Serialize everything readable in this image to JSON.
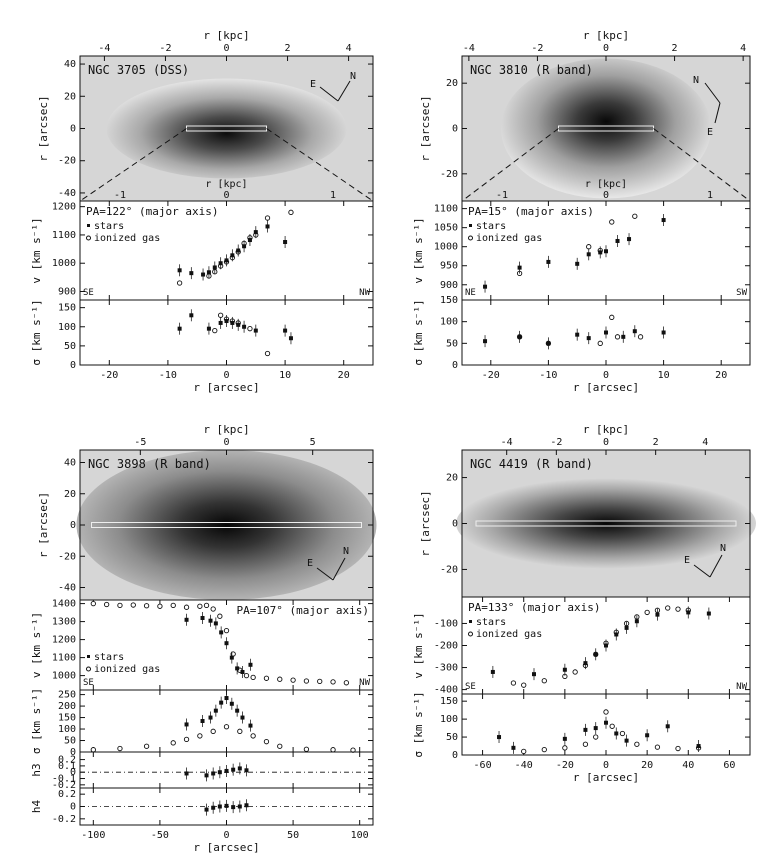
{
  "chart_data": [
    {
      "type": "scatter",
      "galaxy": "NGC 3705 (DSS)",
      "image": {
        "label": "NGC 3705 (DSS)",
        "top_axis_label": "r [kpc]",
        "top_ticks": [
          "-4",
          "-2",
          "0",
          "2",
          "4"
        ],
        "top_range": [
          -4.8,
          4.8
        ],
        "y_axis_label": "r [arcsec]",
        "y_ticks": [
          "40",
          "20",
          "0",
          "-20",
          "-40"
        ],
        "y_range": [
          -45,
          45
        ],
        "compass": [
          "N",
          "E"
        ],
        "bottom_axis_label": "r [kpc]",
        "bottom_ticks": [
          "-1",
          "0",
          "1"
        ]
      },
      "pa_label": "PA=122° (major axis)",
      "legend": [
        "stars",
        "ionized gas"
      ],
      "side_labels": [
        "SE",
        "NW"
      ],
      "x_axis_label": "r [arcsec]",
      "x_ticks": [
        "-20",
        "-10",
        "0",
        "10",
        "20"
      ],
      "xlim": [
        -25,
        25
      ],
      "velocity": {
        "ylabel": "v [km s⁻¹]",
        "ylim": [
          870,
          1220
        ],
        "y_ticks": [
          "900",
          "1000",
          "1100",
          "1200"
        ],
        "stars": [
          [
            -8,
            975
          ],
          [
            -6,
            965
          ],
          [
            -4,
            960
          ],
          [
            -3,
            968
          ],
          [
            -2,
            985
          ],
          [
            -1,
            1000
          ],
          [
            0,
            1010
          ],
          [
            1,
            1028
          ],
          [
            2,
            1045
          ],
          [
            3,
            1060
          ],
          [
            4,
            1082
          ],
          [
            5,
            1110
          ],
          [
            7,
            1130
          ],
          [
            10,
            1075
          ]
        ],
        "gas": [
          [
            -8,
            930
          ],
          [
            -3,
            955
          ],
          [
            -2,
            970
          ],
          [
            -1,
            990
          ],
          [
            0,
            1005
          ],
          [
            1,
            1020
          ],
          [
            2,
            1040
          ],
          [
            3,
            1070
          ],
          [
            4,
            1090
          ],
          [
            5,
            1100
          ],
          [
            7,
            1160
          ],
          [
            11,
            1180
          ]
        ]
      },
      "sigma": {
        "ylabel": "σ [km s⁻¹]",
        "ylim": [
          0,
          170
        ],
        "y_ticks": [
          "0",
          "50",
          "100",
          "150"
        ],
        "stars": [
          [
            -8,
            95
          ],
          [
            -6,
            130
          ],
          [
            -3,
            95
          ],
          [
            -1,
            110
          ],
          [
            0,
            115
          ],
          [
            1,
            110
          ],
          [
            2,
            105
          ],
          [
            3,
            100
          ],
          [
            5,
            90
          ],
          [
            10,
            90
          ],
          [
            11,
            70
          ]
        ],
        "gas": [
          [
            -2,
            90
          ],
          [
            -1,
            130
          ],
          [
            0,
            120
          ],
          [
            1,
            115
          ],
          [
            2,
            110
          ],
          [
            4,
            95
          ],
          [
            7,
            30
          ]
        ]
      }
    },
    {
      "type": "scatter",
      "galaxy": "NGC 3810 (R band)",
      "image": {
        "label": "NGC 3810 (R band)",
        "top_axis_label": "r [kpc]",
        "top_ticks": [
          "-4",
          "-2",
          "0",
          "2",
          "4"
        ],
        "top_range": [
          -4.2,
          4.2
        ],
        "y_axis_label": "r [arcsec]",
        "y_ticks": [
          "20",
          "0",
          "-20"
        ],
        "y_range": [
          -32,
          32
        ],
        "compass": [
          "N",
          "E"
        ],
        "bottom_axis_label": "r [kpc]",
        "bottom_ticks": [
          "-1",
          "0",
          "1"
        ]
      },
      "pa_label": "PA=15° (major axis)",
      "legend": [
        "stars",
        "ionized gas"
      ],
      "side_labels": [
        "NE",
        "SW"
      ],
      "x_axis_label": "r [arcsec]",
      "x_ticks": [
        "-20",
        "-10",
        "0",
        "10",
        "20"
      ],
      "xlim": [
        -25,
        25
      ],
      "velocity": {
        "ylabel": "v [km s⁻¹]",
        "ylim": [
          860,
          1120
        ],
        "y_ticks": [
          "900",
          "950",
          "1000",
          "1050",
          "1100"
        ],
        "stars": [
          [
            -21,
            895
          ],
          [
            -15,
            945
          ],
          [
            -10,
            960
          ],
          [
            -5,
            955
          ],
          [
            -3,
            980
          ],
          [
            -1,
            985
          ],
          [
            0,
            988
          ],
          [
            2,
            1015
          ],
          [
            4,
            1020
          ],
          [
            10,
            1070
          ]
        ],
        "gas": [
          [
            -15,
            930
          ],
          [
            -3,
            1000
          ],
          [
            -1,
            990
          ],
          [
            1,
            1065
          ],
          [
            5,
            1080
          ]
        ]
      },
      "sigma": {
        "ylabel": "σ [km s⁻¹]",
        "ylim": [
          0,
          150
        ],
        "y_ticks": [
          "0",
          "50",
          "100",
          "150"
        ],
        "stars": [
          [
            -21,
            55
          ],
          [
            -15,
            65
          ],
          [
            -10,
            50
          ],
          [
            -5,
            70
          ],
          [
            -3,
            62
          ],
          [
            0,
            75
          ],
          [
            3,
            65
          ],
          [
            5,
            78
          ],
          [
            10,
            75
          ]
        ],
        "gas": [
          [
            -15,
            65
          ],
          [
            -10,
            50
          ],
          [
            -1,
            50
          ],
          [
            1,
            110
          ],
          [
            2,
            65
          ],
          [
            6,
            65
          ]
        ]
      }
    },
    {
      "type": "scatter",
      "galaxy": "NGC 3898 (R band)",
      "image": {
        "label": "NGC 3898 (R band)",
        "top_axis_label": "r [kpc]",
        "top_ticks": [
          "-5",
          "0",
          "5"
        ],
        "top_range": [
          -8.5,
          8.5
        ],
        "y_axis_label": "r [arcsec]",
        "y_ticks": [
          "40",
          "20",
          "0",
          "-20",
          "-40"
        ],
        "y_range": [
          -48,
          48
        ],
        "compass": [
          "N",
          "E"
        ]
      },
      "pa_label": "PA=107° (major axis)",
      "legend": [
        "stars",
        "ionized gas"
      ],
      "side_labels": [
        "SE",
        "NW"
      ],
      "x_axis_label": "r [arcsec]",
      "x_ticks": [
        "-100",
        "-50",
        "0",
        "50",
        "100"
      ],
      "xlim": [
        -110,
        110
      ],
      "velocity": {
        "ylabel": "v [km s⁻¹]",
        "ylim": [
          920,
          1420
        ],
        "y_ticks": [
          "1000",
          "1100",
          "1200",
          "1300",
          "1400"
        ],
        "stars": [
          [
            -30,
            1310
          ],
          [
            -18,
            1320
          ],
          [
            -12,
            1305
          ],
          [
            -8,
            1290
          ],
          [
            -4,
            1240
          ],
          [
            0,
            1180
          ],
          [
            4,
            1100
          ],
          [
            8,
            1040
          ],
          [
            12,
            1020
          ],
          [
            18,
            1060
          ]
        ],
        "gas": [
          [
            -100,
            1400
          ],
          [
            -90,
            1395
          ],
          [
            -80,
            1390
          ],
          [
            -70,
            1392
          ],
          [
            -60,
            1388
          ],
          [
            -50,
            1385
          ],
          [
            -40,
            1390
          ],
          [
            -30,
            1380
          ],
          [
            -20,
            1385
          ],
          [
            -15,
            1390
          ],
          [
            -10,
            1370
          ],
          [
            -5,
            1330
          ],
          [
            0,
            1250
          ],
          [
            5,
            1120
          ],
          [
            10,
            1030
          ],
          [
            15,
            1000
          ],
          [
            20,
            990
          ],
          [
            30,
            985
          ],
          [
            40,
            980
          ],
          [
            50,
            975
          ],
          [
            60,
            970
          ],
          [
            70,
            968
          ],
          [
            80,
            965
          ],
          [
            90,
            960
          ]
        ]
      },
      "sigma": {
        "ylabel": "σ [km s⁻¹]",
        "ylim": [
          0,
          270
        ],
        "y_ticks": [
          "0",
          "50",
          "100",
          "150",
          "200",
          "250"
        ],
        "stars": [
          [
            -30,
            120
          ],
          [
            -18,
            135
          ],
          [
            -12,
            150
          ],
          [
            -8,
            180
          ],
          [
            -4,
            215
          ],
          [
            0,
            235
          ],
          [
            4,
            210
          ],
          [
            8,
            180
          ],
          [
            12,
            150
          ],
          [
            18,
            115
          ]
        ],
        "gas": [
          [
            -100,
            10
          ],
          [
            -80,
            15
          ],
          [
            -60,
            25
          ],
          [
            -40,
            40
          ],
          [
            -30,
            55
          ],
          [
            -20,
            70
          ],
          [
            -10,
            90
          ],
          [
            0,
            110
          ],
          [
            10,
            90
          ],
          [
            20,
            70
          ],
          [
            30,
            45
          ],
          [
            40,
            25
          ],
          [
            60,
            12
          ],
          [
            80,
            10
          ],
          [
            95,
            8
          ]
        ]
      },
      "h3": {
        "ylabel": "h3",
        "ylim": [
          -0.25,
          0.32
        ],
        "y_ticks": [
          "0.2",
          "0.1",
          "0",
          "-0.1",
          "-0.2"
        ],
        "stars": [
          [
            -30,
            -0.02
          ],
          [
            -15,
            -0.05
          ],
          [
            -10,
            -0.02
          ],
          [
            -5,
            0.0
          ],
          [
            0,
            0.02
          ],
          [
            5,
            0.04
          ],
          [
            10,
            0.06
          ],
          [
            15,
            0.03
          ]
        ]
      },
      "h4": {
        "ylabel": "h4",
        "ylim": [
          -0.3,
          0.3
        ],
        "y_ticks": [
          "0.2",
          "0",
          "-0.2"
        ],
        "stars": [
          [
            -15,
            -0.05
          ],
          [
            -10,
            -0.02
          ],
          [
            -5,
            0.0
          ],
          [
            0,
            0.01
          ],
          [
            5,
            -0.01
          ],
          [
            10,
            0.0
          ],
          [
            15,
            0.02
          ]
        ]
      }
    },
    {
      "type": "scatter",
      "galaxy": "NGC 4419 (R band)",
      "image": {
        "label": "NGC 4419 (R band)",
        "top_axis_label": "r [kpc]",
        "top_ticks": [
          "-4",
          "-2",
          "0",
          "2",
          "4"
        ],
        "top_range": [
          -5.8,
          5.8
        ],
        "y_axis_label": "r [arcsec]",
        "y_ticks": [
          "20",
          "0",
          "-20"
        ],
        "y_range": [
          -32,
          32
        ],
        "compass": [
          "E",
          "N"
        ]
      },
      "pa_label": "PA=133° (major axis)",
      "legend": [
        "stars",
        "ionized gas"
      ],
      "side_labels": [
        "SE",
        "NW"
      ],
      "x_axis_label": "r [arcsec]",
      "x_ticks": [
        "-60",
        "-40",
        "-20",
        "0",
        "20",
        "40",
        "60"
      ],
      "xlim": [
        -70,
        70
      ],
      "velocity": {
        "ylabel": "v [km s⁻¹]",
        "ylim": [
          -420,
          20
        ],
        "y_ticks": [
          "-100",
          "-200",
          "-300",
          "-400"
        ],
        "stars": [
          [
            -55,
            -320
          ],
          [
            -35,
            -330
          ],
          [
            -20,
            -310
          ],
          [
            -10,
            -280
          ],
          [
            -5,
            -240
          ],
          [
            0,
            -200
          ],
          [
            5,
            -150
          ],
          [
            10,
            -120
          ],
          [
            15,
            -90
          ],
          [
            25,
            -60
          ],
          [
            40,
            -50
          ],
          [
            50,
            -55
          ]
        ],
        "gas": [
          [
            -45,
            -370
          ],
          [
            -40,
            -380
          ],
          [
            -30,
            -360
          ],
          [
            -20,
            -340
          ],
          [
            -15,
            -320
          ],
          [
            -10,
            -290
          ],
          [
            -5,
            -240
          ],
          [
            0,
            -190
          ],
          [
            5,
            -140
          ],
          [
            10,
            -100
          ],
          [
            15,
            -70
          ],
          [
            20,
            -50
          ],
          [
            25,
            -40
          ],
          [
            30,
            -30
          ],
          [
            35,
            -35
          ],
          [
            40,
            -40
          ]
        ]
      },
      "sigma": {
        "ylabel": "σ [km s⁻¹]",
        "ylim": [
          0,
          170
        ],
        "y_ticks": [
          "0",
          "50",
          "100",
          "150"
        ],
        "stars": [
          [
            -52,
            50
          ],
          [
            -45,
            20
          ],
          [
            -20,
            45
          ],
          [
            -10,
            70
          ],
          [
            -5,
            75
          ],
          [
            0,
            90
          ],
          [
            5,
            60
          ],
          [
            10,
            40
          ],
          [
            20,
            55
          ],
          [
            30,
            80
          ],
          [
            45,
            25
          ]
        ],
        "gas": [
          [
            -40,
            10
          ],
          [
            -30,
            15
          ],
          [
            -20,
            20
          ],
          [
            -10,
            30
          ],
          [
            -5,
            50
          ],
          [
            0,
            120
          ],
          [
            3,
            80
          ],
          [
            8,
            60
          ],
          [
            15,
            30
          ],
          [
            25,
            22
          ],
          [
            35,
            18
          ],
          [
            45,
            20
          ]
        ]
      }
    }
  ]
}
